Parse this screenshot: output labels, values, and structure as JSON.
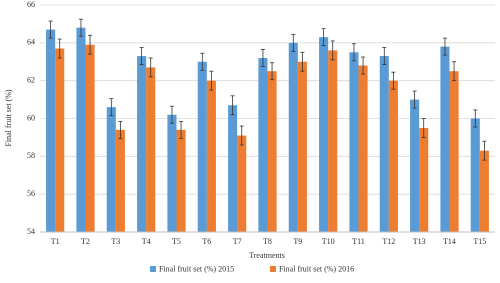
{
  "chart_data": {
    "type": "bar",
    "y_label": "Final fruit set (%)",
    "x_label": "Treatments",
    "categories": [
      "T1",
      "T2",
      "T3",
      "T4",
      "T5",
      "T6",
      "T7",
      "T8",
      "T9",
      "T10",
      "T11",
      "T12",
      "T13",
      "T14",
      "T15"
    ],
    "series": [
      {
        "name": "Final fruit set (%) 2015",
        "color": "#5b9bd5",
        "values": [
          64.7,
          64.8,
          60.6,
          63.3,
          60.2,
          63.0,
          60.7,
          63.2,
          64.0,
          64.3,
          63.5,
          63.3,
          61.0,
          63.8,
          60.0
        ],
        "errors": [
          0.45,
          0.45,
          0.45,
          0.45,
          0.45,
          0.45,
          0.5,
          0.45,
          0.45,
          0.45,
          0.45,
          0.45,
          0.45,
          0.45,
          0.45
        ]
      },
      {
        "name": "Final fruit set (%) 2016",
        "color": "#ed7d31",
        "values": [
          63.7,
          63.9,
          59.4,
          62.7,
          59.4,
          62.0,
          59.1,
          62.5,
          63.0,
          63.6,
          62.8,
          62.0,
          59.5,
          62.5,
          58.3
        ],
        "errors": [
          0.5,
          0.5,
          0.45,
          0.5,
          0.45,
          0.5,
          0.5,
          0.45,
          0.5,
          0.5,
          0.45,
          0.45,
          0.5,
          0.5,
          0.5
        ]
      }
    ],
    "ylim": [
      54,
      66
    ],
    "yticks": [
      54,
      56,
      58,
      60,
      62,
      64,
      66
    ],
    "grid": true,
    "legend": "bottom"
  }
}
